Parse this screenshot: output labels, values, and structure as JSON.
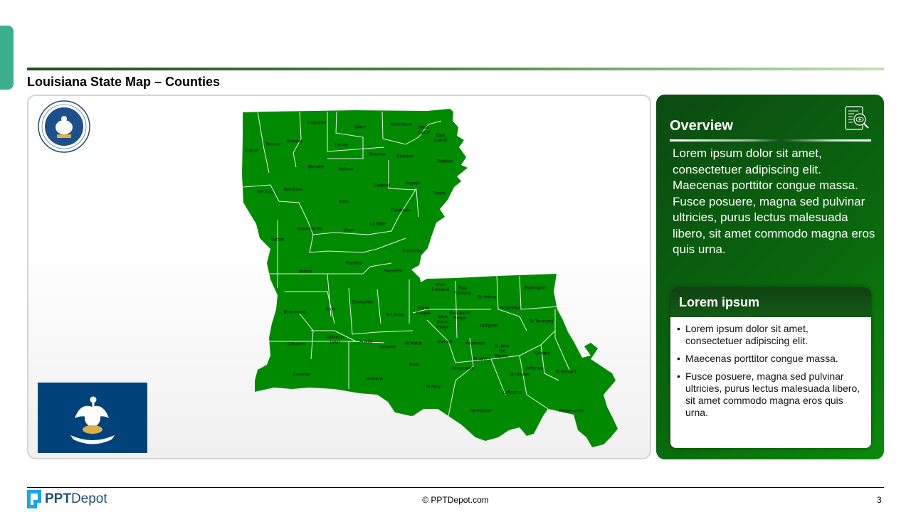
{
  "slide": {
    "title": "Louisiana State Map – Counties",
    "page_number": "3",
    "copyright": "© PPTDepot.com"
  },
  "logo": {
    "bold": "PPT",
    "light": "Depot"
  },
  "seal": {
    "text": "STATE OF LOUISIANA"
  },
  "colors": {
    "map_fill": "#008a00",
    "panel_green": "#0a6a0c",
    "accent_teal": "#3aaf8e",
    "flag_blue": "#00437a"
  },
  "map": {
    "parishes": [
      "Claiborne",
      "Union",
      "Morehouse",
      "West Carroll",
      "East Carroll",
      "Caddo",
      "Bossier",
      "Webster",
      "Lincoln",
      "Ouachita",
      "Richland",
      "Madison",
      "Bienville",
      "Jackson",
      "Caldwell",
      "Franklin",
      "De Soto",
      "Red River",
      "Tensas",
      "Winn",
      "Catahoula",
      "La Salle",
      "Natchitoches",
      "Grant",
      "Sabine",
      "Concordia",
      "Rapides",
      "Vernon",
      "Avoyelles",
      "West Feliciana",
      "East Feliciana",
      "St Helena",
      "Washington",
      "Beauregard",
      "Allen",
      "Evangeline",
      "St Landry",
      "Pointe Coupee",
      "West Baton Rouge",
      "East Baton Rouge",
      "Tangipahoa",
      "St Tammany",
      "Livingston",
      "Calcasieu",
      "Jefferson Davis",
      "Acadia",
      "Lafayette",
      "St Martin",
      "Iberville",
      "Ascension",
      "St John The Baptist",
      "St James",
      "Orleans",
      "Iberia",
      "Assumption",
      "St Charles",
      "Jefferson",
      "St Bernard",
      "Cameron",
      "Vermilion",
      "St Mary",
      "Lafourche",
      "Terrebonne",
      "Plaquemines"
    ]
  },
  "overview": {
    "title": "Overview",
    "icon": "document-search-icon",
    "text": "Lorem ipsum dolor sit amet, consectetuer adipiscing elit. Maecenas porttitor congue massa. Fusce posuere, magna sed pulvinar ultricies, purus lectus malesuada libero, sit amet commodo magna eros quis urna."
  },
  "card": {
    "title": "Lorem ipsum",
    "bullets": [
      "Lorem ipsum dolor sit amet, consectetuer adipiscing elit.",
      "Maecenas porttitor congue massa.",
      "Fusce posuere, magna sed pulvinar ultricies, purus lectus malesuada libero, sit amet commodo magna eros quis urna."
    ]
  }
}
